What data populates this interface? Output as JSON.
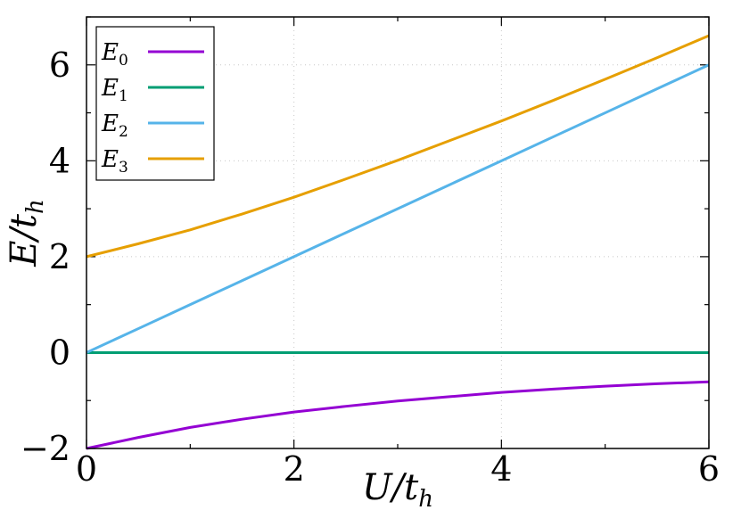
{
  "chart_data": {
    "type": "line",
    "title": "",
    "xlabel": {
      "main": "U/t",
      "sub": "h"
    },
    "ylabel": {
      "main": "E/t",
      "sub": "h"
    },
    "xlim": [
      0,
      6
    ],
    "ylim": [
      -2,
      7
    ],
    "xticks": [
      0,
      2,
      4,
      6
    ],
    "yticks": [
      -2,
      0,
      2,
      4,
      6
    ],
    "xtick_labels": [
      "0",
      "2",
      "4",
      "6"
    ],
    "ytick_labels": [
      "−2",
      "0",
      "2",
      "4",
      "6"
    ],
    "grid": true,
    "legend_position": "top-left",
    "x": [
      0,
      0.5,
      1,
      1.5,
      2,
      2.5,
      3,
      3.5,
      4,
      4.5,
      5,
      5.5,
      6
    ],
    "series": [
      {
        "name": "E",
        "sub": "0",
        "color": "#9400d3",
        "values": [
          -2.0,
          -1.77,
          -1.56,
          -1.39,
          -1.24,
          -1.12,
          -1.01,
          -0.92,
          -0.83,
          -0.76,
          -0.7,
          -0.65,
          -0.61
        ]
      },
      {
        "name": "E",
        "sub": "1",
        "color": "#009e73",
        "values": [
          0,
          0,
          0,
          0,
          0,
          0,
          0,
          0,
          0,
          0,
          0,
          0,
          0
        ]
      },
      {
        "name": "E",
        "sub": "2",
        "color": "#56b4e9",
        "values": [
          0,
          0.5,
          1,
          1.5,
          2,
          2.5,
          3,
          3.5,
          4,
          4.5,
          5,
          5.5,
          6
        ]
      },
      {
        "name": "E",
        "sub": "3",
        "color": "#e69f00",
        "values": [
          2.0,
          2.27,
          2.56,
          2.89,
          3.24,
          3.62,
          4.01,
          4.42,
          4.83,
          5.26,
          5.7,
          6.15,
          6.61
        ]
      }
    ]
  }
}
